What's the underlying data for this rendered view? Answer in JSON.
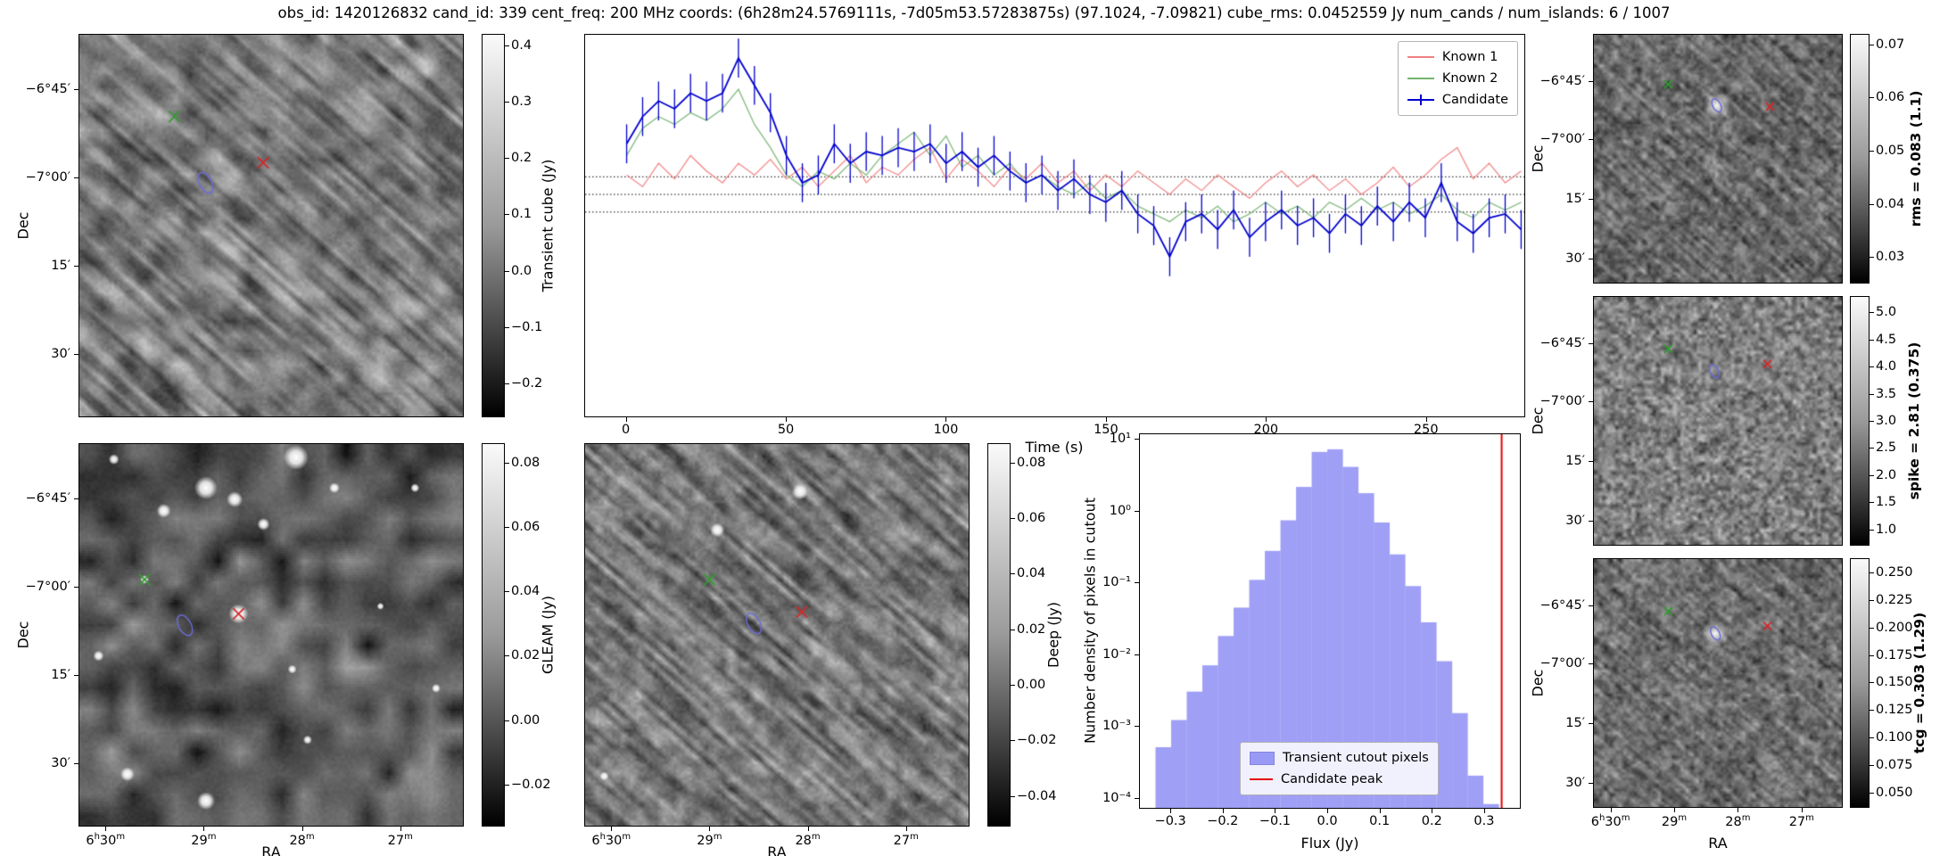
{
  "title": "obs_id: 1420126832 cand_id: 339 cent_freq: 200 MHz coords: (6h28m24.5769111s, -7d05m53.57283875s) (97.1024, -7.09821) cube_rms: 0.0452559 Jy num_cands / num_islands: 6 / 1007",
  "axes": {
    "dec_label": "Dec",
    "ra_label": "RA",
    "dec_ticks": [
      "-6°45'",
      "-7°00'",
      "15'",
      "30'"
    ],
    "ra_ticks": [
      "6h30m",
      "29m",
      "28m",
      "27m"
    ]
  },
  "marker_colors": {
    "green_x": "#2e9e2e",
    "red_x": "#d62728",
    "ellipse": "#6b6bd8"
  },
  "panels": {
    "transient_cube": {
      "colorbar": {
        "label": "Transient cube (Jy)",
        "ticks": [
          "0.4",
          "0.3",
          "0.2",
          "0.1",
          "0.0",
          "-0.1",
          "-0.2"
        ],
        "vmin": -0.26,
        "vmax": 0.42,
        "bold": false
      },
      "markers": {
        "green_x": [
          0.248,
          0.214
        ],
        "red_x": [
          0.479,
          0.335
        ],
        "ellipse": [
          0.329,
          0.388
        ]
      },
      "texture": "smooth-blob-noise-with-diagonal-streaks"
    },
    "gleam": {
      "colorbar": {
        "label": "GLEAM (Jy)",
        "ticks": [
          "0.08",
          "0.06",
          "0.04",
          "0.02",
          "0.00",
          "-0.02"
        ],
        "vmin": -0.033,
        "vmax": 0.086,
        "bold": false
      },
      "markers": {
        "green_x": [
          0.17,
          0.355
        ],
        "red_x": [
          0.415,
          0.445
        ],
        "ellipse": [
          0.275,
          0.475
        ]
      },
      "texture": "smooth-noise-with-bright-point-sources"
    },
    "deep": {
      "colorbar": {
        "label": "Deep (Jy)",
        "ticks": [
          "0.08",
          "0.06",
          "0.04",
          "0.02",
          "0.00",
          "-0.02",
          "-0.04"
        ],
        "vmin": -0.051,
        "vmax": 0.087,
        "bold": false
      },
      "markers": {
        "green_x": [
          0.325,
          0.355
        ],
        "red_x": [
          0.565,
          0.44
        ],
        "ellipse": [
          0.44,
          0.47
        ]
      },
      "texture": "fine-diagonal-streaked-noise"
    },
    "rms": {
      "colorbar": {
        "label": "rms = 0.083 (1.1)",
        "ticks": [
          "0.07",
          "0.06",
          "0.05",
          "0.04",
          "0.03"
        ],
        "vmin": 0.025,
        "vmax": 0.072,
        "bold": true
      },
      "markers": {
        "green_x": [
          0.3,
          0.2
        ],
        "red_x": [
          0.71,
          0.29
        ],
        "ellipse": [
          0.495,
          0.285
        ]
      },
      "texture": "fine-streaked-noise-with-bright-source"
    },
    "spike": {
      "colorbar": {
        "label": "spike = 2.81 (0.375)",
        "ticks": [
          "5.0",
          "4.5",
          "4.0",
          "3.5",
          "3.0",
          "2.5",
          "2.0",
          "1.5",
          "1.0"
        ],
        "vmin": 0.7,
        "vmax": 5.3,
        "bold": true
      },
      "markers": {
        "green_x": [
          0.3,
          0.21
        ],
        "red_x": [
          0.7,
          0.27
        ],
        "ellipse": [
          0.486,
          0.3
        ]
      },
      "texture": "fine-grain-noise"
    },
    "tcg": {
      "colorbar": {
        "label": "tcg = 0.303 (1.29)",
        "ticks": [
          "0.250",
          "0.225",
          "0.200",
          "0.175",
          "0.150",
          "0.125",
          "0.100",
          "0.075",
          "0.050"
        ],
        "vmin": 0.036,
        "vmax": 0.263,
        "bold": true
      },
      "markers": {
        "green_x": [
          0.3,
          0.21
        ],
        "red_x": [
          0.7,
          0.27
        ],
        "ellipse": [
          0.49,
          0.3
        ]
      },
      "texture": "fine-streaked-noise-with-bright-source"
    }
  },
  "chart_data": [
    {
      "type": "line",
      "title": "",
      "xlabel": "Time (s)",
      "ylabel": "",
      "xlim": [
        -13,
        281
      ],
      "ylim": [
        -0.57,
        0.41
      ],
      "xticks": [
        0,
        50,
        100,
        150,
        200,
        250
      ],
      "hlines": [
        0.0452559,
        0,
        -0.0452559
      ],
      "hline_style": "dotted",
      "legend_position": "upper right",
      "x": [
        0,
        5,
        10,
        15,
        20,
        25,
        30,
        35,
        40,
        45,
        50,
        55,
        60,
        65,
        70,
        75,
        80,
        85,
        90,
        95,
        100,
        105,
        110,
        115,
        120,
        125,
        130,
        135,
        140,
        145,
        150,
        155,
        160,
        165,
        170,
        175,
        180,
        185,
        190,
        195,
        200,
        205,
        210,
        215,
        220,
        225,
        230,
        235,
        240,
        245,
        250,
        255,
        260,
        265,
        270,
        275,
        280
      ],
      "series": [
        {
          "name": "Known 1",
          "color": "#f08080",
          "values": [
            0.05,
            0.02,
            0.08,
            0.04,
            0.1,
            0.06,
            0.03,
            0.08,
            0.05,
            0.09,
            0.04,
            0.07,
            0.02,
            0.06,
            0.1,
            0.03,
            0.07,
            0.05,
            0.09,
            0.12,
            0.04,
            0.09,
            0.06,
            0.02,
            0.07,
            0.04,
            0.08,
            0.03,
            0.06,
            0.01,
            0.05,
            0.02,
            0.06,
            0.03,
            0.0,
            0.04,
            0.01,
            0.05,
            0.02,
            -0.01,
            0.03,
            0.06,
            0.02,
            0.05,
            0.01,
            0.04,
            0.0,
            0.03,
            0.07,
            0.02,
            0.05,
            0.09,
            0.12,
            0.04,
            0.08,
            0.03,
            0.06
          ]
        },
        {
          "name": "Known 2",
          "color": "#74b36e",
          "values": [
            0.1,
            0.17,
            0.2,
            0.18,
            0.21,
            0.19,
            0.22,
            0.27,
            0.18,
            0.12,
            0.05,
            0.02,
            0.06,
            0.04,
            0.08,
            0.05,
            0.1,
            0.13,
            0.16,
            0.1,
            0.15,
            0.07,
            0.1,
            0.05,
            0.08,
            0.03,
            0.05,
            0.02,
            0.0,
            0.03,
            -0.01,
            0.01,
            -0.03,
            -0.05,
            -0.07,
            -0.04,
            -0.06,
            -0.03,
            -0.07,
            -0.05,
            -0.02,
            -0.05,
            -0.03,
            -0.06,
            -0.02,
            -0.04,
            -0.01,
            -0.04,
            -0.02,
            -0.05,
            -0.03,
            0.0,
            -0.04,
            -0.06,
            -0.02,
            -0.04,
            -0.02
          ]
        },
        {
          "name": "Candidate",
          "color": "#0000cd",
          "yerr": 0.05,
          "values": [
            0.13,
            0.2,
            0.24,
            0.22,
            0.26,
            0.24,
            0.26,
            0.35,
            0.28,
            0.21,
            0.1,
            0.03,
            0.05,
            0.13,
            0.08,
            0.11,
            0.1,
            0.12,
            0.11,
            0.13,
            0.08,
            0.11,
            0.07,
            0.1,
            0.06,
            0.03,
            0.05,
            0.01,
            0.04,
            0.0,
            -0.02,
            0.01,
            -0.05,
            -0.08,
            -0.16,
            -0.07,
            -0.05,
            -0.09,
            -0.04,
            -0.11,
            -0.07,
            -0.04,
            -0.08,
            -0.06,
            -0.1,
            -0.05,
            -0.08,
            -0.03,
            -0.07,
            -0.02,
            -0.06,
            0.03,
            -0.07,
            -0.1,
            -0.06,
            -0.05,
            -0.09
          ]
        }
      ]
    },
    {
      "type": "bar",
      "title": "",
      "xlabel": "Flux (Jy)",
      "ylabel": "Number density of pixels in cutout",
      "yscale": "log",
      "xlim": [
        -0.36,
        0.37
      ],
      "ylim_log": [
        -4.15,
        1.08
      ],
      "xticks": [
        -0.3,
        -0.2,
        -0.1,
        0.0,
        0.1,
        0.2,
        0.3
      ],
      "yticks": [
        {
          "label": "10¹",
          "exp": 1
        },
        {
          "label": "10⁰",
          "exp": 0
        },
        {
          "label": "10⁻¹",
          "exp": -1
        },
        {
          "label": "10⁻²",
          "exp": -2
        },
        {
          "label": "10⁻³",
          "exp": -3
        },
        {
          "label": "10⁻⁴",
          "exp": -4
        }
      ],
      "bin_width": 0.03,
      "bin_centers": [
        -0.315,
        -0.285,
        -0.255,
        -0.225,
        -0.195,
        -0.165,
        -0.135,
        -0.105,
        -0.075,
        -0.045,
        -0.015,
        0.015,
        0.045,
        0.075,
        0.105,
        0.135,
        0.165,
        0.195,
        0.225,
        0.255,
        0.285,
        0.315
      ],
      "densities": [
        0.0005,
        0.0012,
        0.003,
        0.007,
        0.018,
        0.045,
        0.11,
        0.28,
        0.75,
        2.2,
        6.8,
        7.4,
        4.2,
        1.8,
        0.7,
        0.25,
        0.09,
        0.028,
        0.008,
        0.0015,
        0.0002,
        8e-05
      ],
      "bar_color": "#6464f0",
      "candidate_peak": 0.335,
      "peak_color": "#e50000",
      "legend": [
        "Transient cutout pixels",
        "Candidate peak"
      ]
    }
  ]
}
